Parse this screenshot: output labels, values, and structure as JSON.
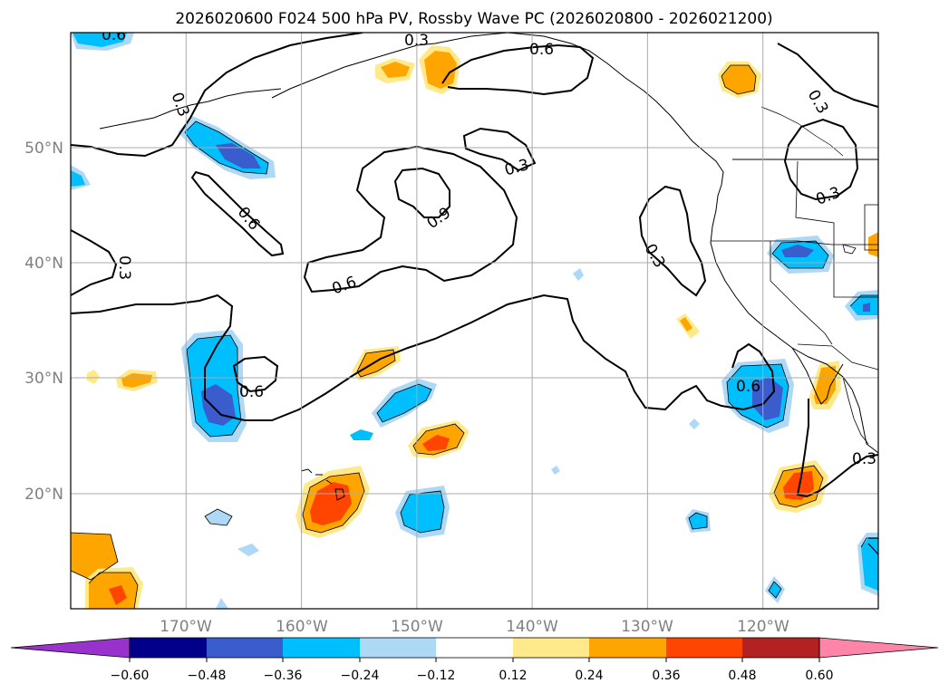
{
  "title": "2026020600 F024 500 hPa PV, Rossby Wave PC (2026020800 - 2026021200)",
  "map": {
    "lat_ticks": [
      "50°N",
      "40°N",
      "30°N",
      "20°N"
    ],
    "lon_ticks": [
      "170°W",
      "160°W",
      "150°W",
      "140°W",
      "130°W",
      "120°W"
    ],
    "lat_range": [
      10,
      60
    ],
    "lon_range": [
      -180,
      -110
    ],
    "contour_labels": [
      "0.6",
      "0.3",
      "0.6",
      "0.3",
      "0.3",
      "0.6",
      "0.3",
      "0.9",
      "0.6",
      "0.3",
      "0.3",
      "0.3",
      "0.6",
      "0.6",
      "0.3"
    ]
  },
  "colorbar": {
    "tick_labels": [
      "−0.60",
      "−0.48",
      "−0.36",
      "−0.24",
      "−0.12",
      "0.12",
      "0.24",
      "0.36",
      "0.48",
      "0.60"
    ],
    "bounds": [
      -0.6,
      -0.48,
      -0.36,
      -0.24,
      -0.12,
      0.12,
      0.24,
      0.36,
      0.48,
      0.6
    ],
    "colors": [
      "#9932cc",
      "#00008b",
      "#3a5ccc",
      "#00bfff",
      "#add8f6",
      "#ffffff",
      "#ffe98a",
      "#ffa500",
      "#ff4500",
      "#b22222",
      "#ff85a8"
    ]
  }
}
